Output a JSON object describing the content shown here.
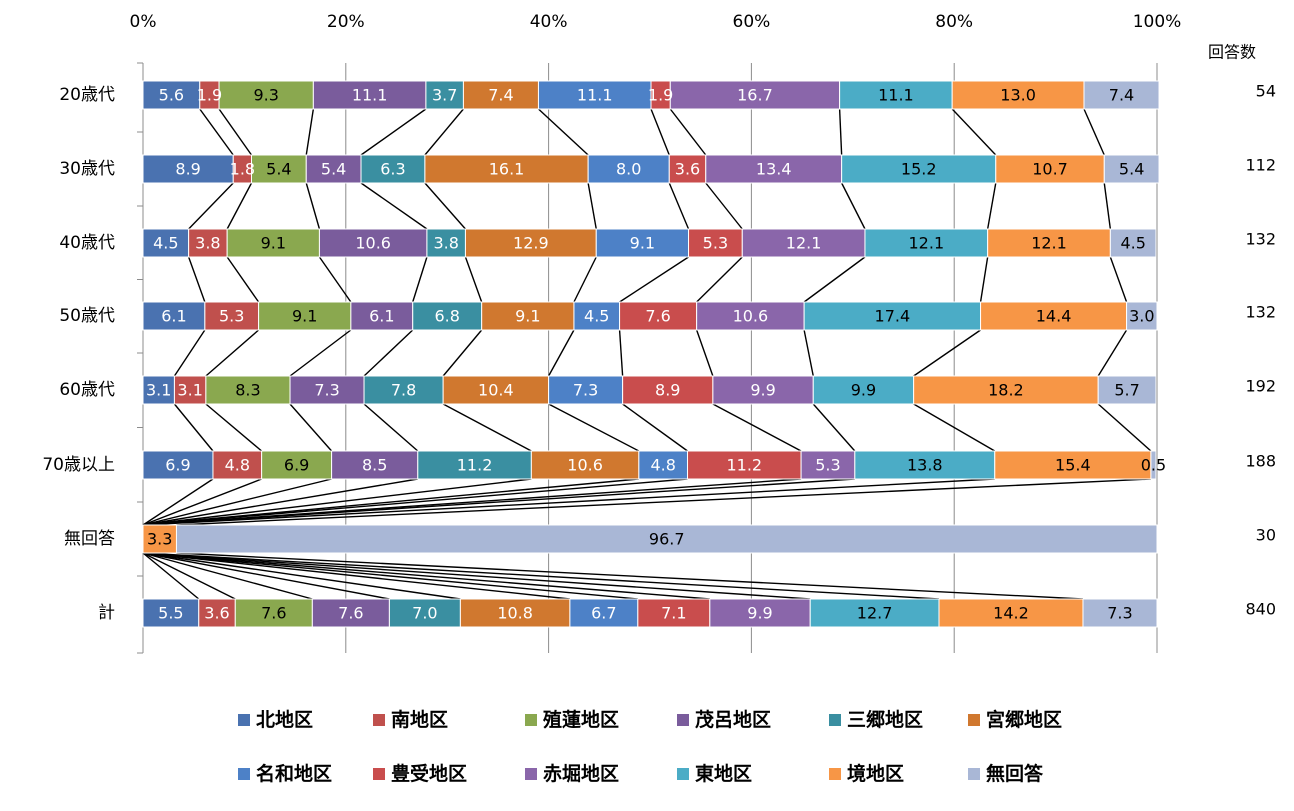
{
  "chart_data": {
    "type": "bar",
    "orientation": "horizontal",
    "stacked": "percent",
    "count_header": "回答数",
    "x_ticks": [
      "0%",
      "20%",
      "40%",
      "60%",
      "80%",
      "100%"
    ],
    "xlim": [
      0,
      100
    ],
    "grid": true,
    "legend_position": "bottom",
    "categories": [
      "20歳代",
      "30歳代",
      "40歳代",
      "50歳代",
      "60歳代",
      "70歳以上",
      "無回答",
      "計"
    ],
    "counts": [
      "54",
      "112",
      "132",
      "132",
      "192",
      "188",
      "30",
      "840"
    ],
    "series": [
      {
        "name": "北地区",
        "color": "#4a72b0",
        "values": [
          5.6,
          8.9,
          4.5,
          6.1,
          3.1,
          6.9,
          0,
          5.5
        ]
      },
      {
        "name": "南地区",
        "color": "#c0504d",
        "values": [
          1.9,
          1.8,
          3.8,
          5.3,
          3.1,
          4.8,
          0,
          3.6
        ]
      },
      {
        "name": "殖蓮地区",
        "color": "#8aa84f",
        "values": [
          9.3,
          5.4,
          9.1,
          9.1,
          8.3,
          6.9,
          0,
          7.6
        ]
      },
      {
        "name": "茂呂地区",
        "color": "#7a5c9c",
        "values": [
          11.1,
          5.4,
          10.6,
          6.1,
          7.3,
          8.5,
          0,
          7.6
        ]
      },
      {
        "name": "三郷地区",
        "color": "#3a8fa1",
        "values": [
          3.7,
          6.3,
          3.8,
          6.8,
          7.8,
          11.2,
          0,
          7.0
        ]
      },
      {
        "name": "宮郷地区",
        "color": "#d0782f",
        "values": [
          7.4,
          16.1,
          12.9,
          9.1,
          10.4,
          10.6,
          0,
          10.8
        ]
      },
      {
        "name": "名和地区",
        "color": "#4d81c7",
        "values": [
          11.1,
          8.0,
          9.1,
          4.5,
          7.3,
          4.8,
          0,
          6.7
        ]
      },
      {
        "name": "豊受地区",
        "color": "#c94d4d",
        "values": [
          1.9,
          3.6,
          5.3,
          7.6,
          8.9,
          11.2,
          0,
          7.1
        ]
      },
      {
        "name": "赤堀地区",
        "color": "#8a66aa",
        "values": [
          16.7,
          13.4,
          12.1,
          10.6,
          9.9,
          5.3,
          0,
          9.9
        ]
      },
      {
        "name": "東地区",
        "color": "#4bacc6",
        "values": [
          11.1,
          15.2,
          12.1,
          17.4,
          9.9,
          13.8,
          0,
          12.7
        ]
      },
      {
        "name": "境地区",
        "color": "#f79646",
        "values": [
          13.0,
          10.7,
          12.1,
          14.4,
          18.2,
          15.4,
          3.3,
          14.2
        ]
      },
      {
        "name": "無回答",
        "color": "#a9b7d6",
        "values": [
          7.4,
          5.4,
          4.5,
          3.0,
          5.7,
          0.5,
          96.7,
          7.3
        ]
      }
    ]
  }
}
